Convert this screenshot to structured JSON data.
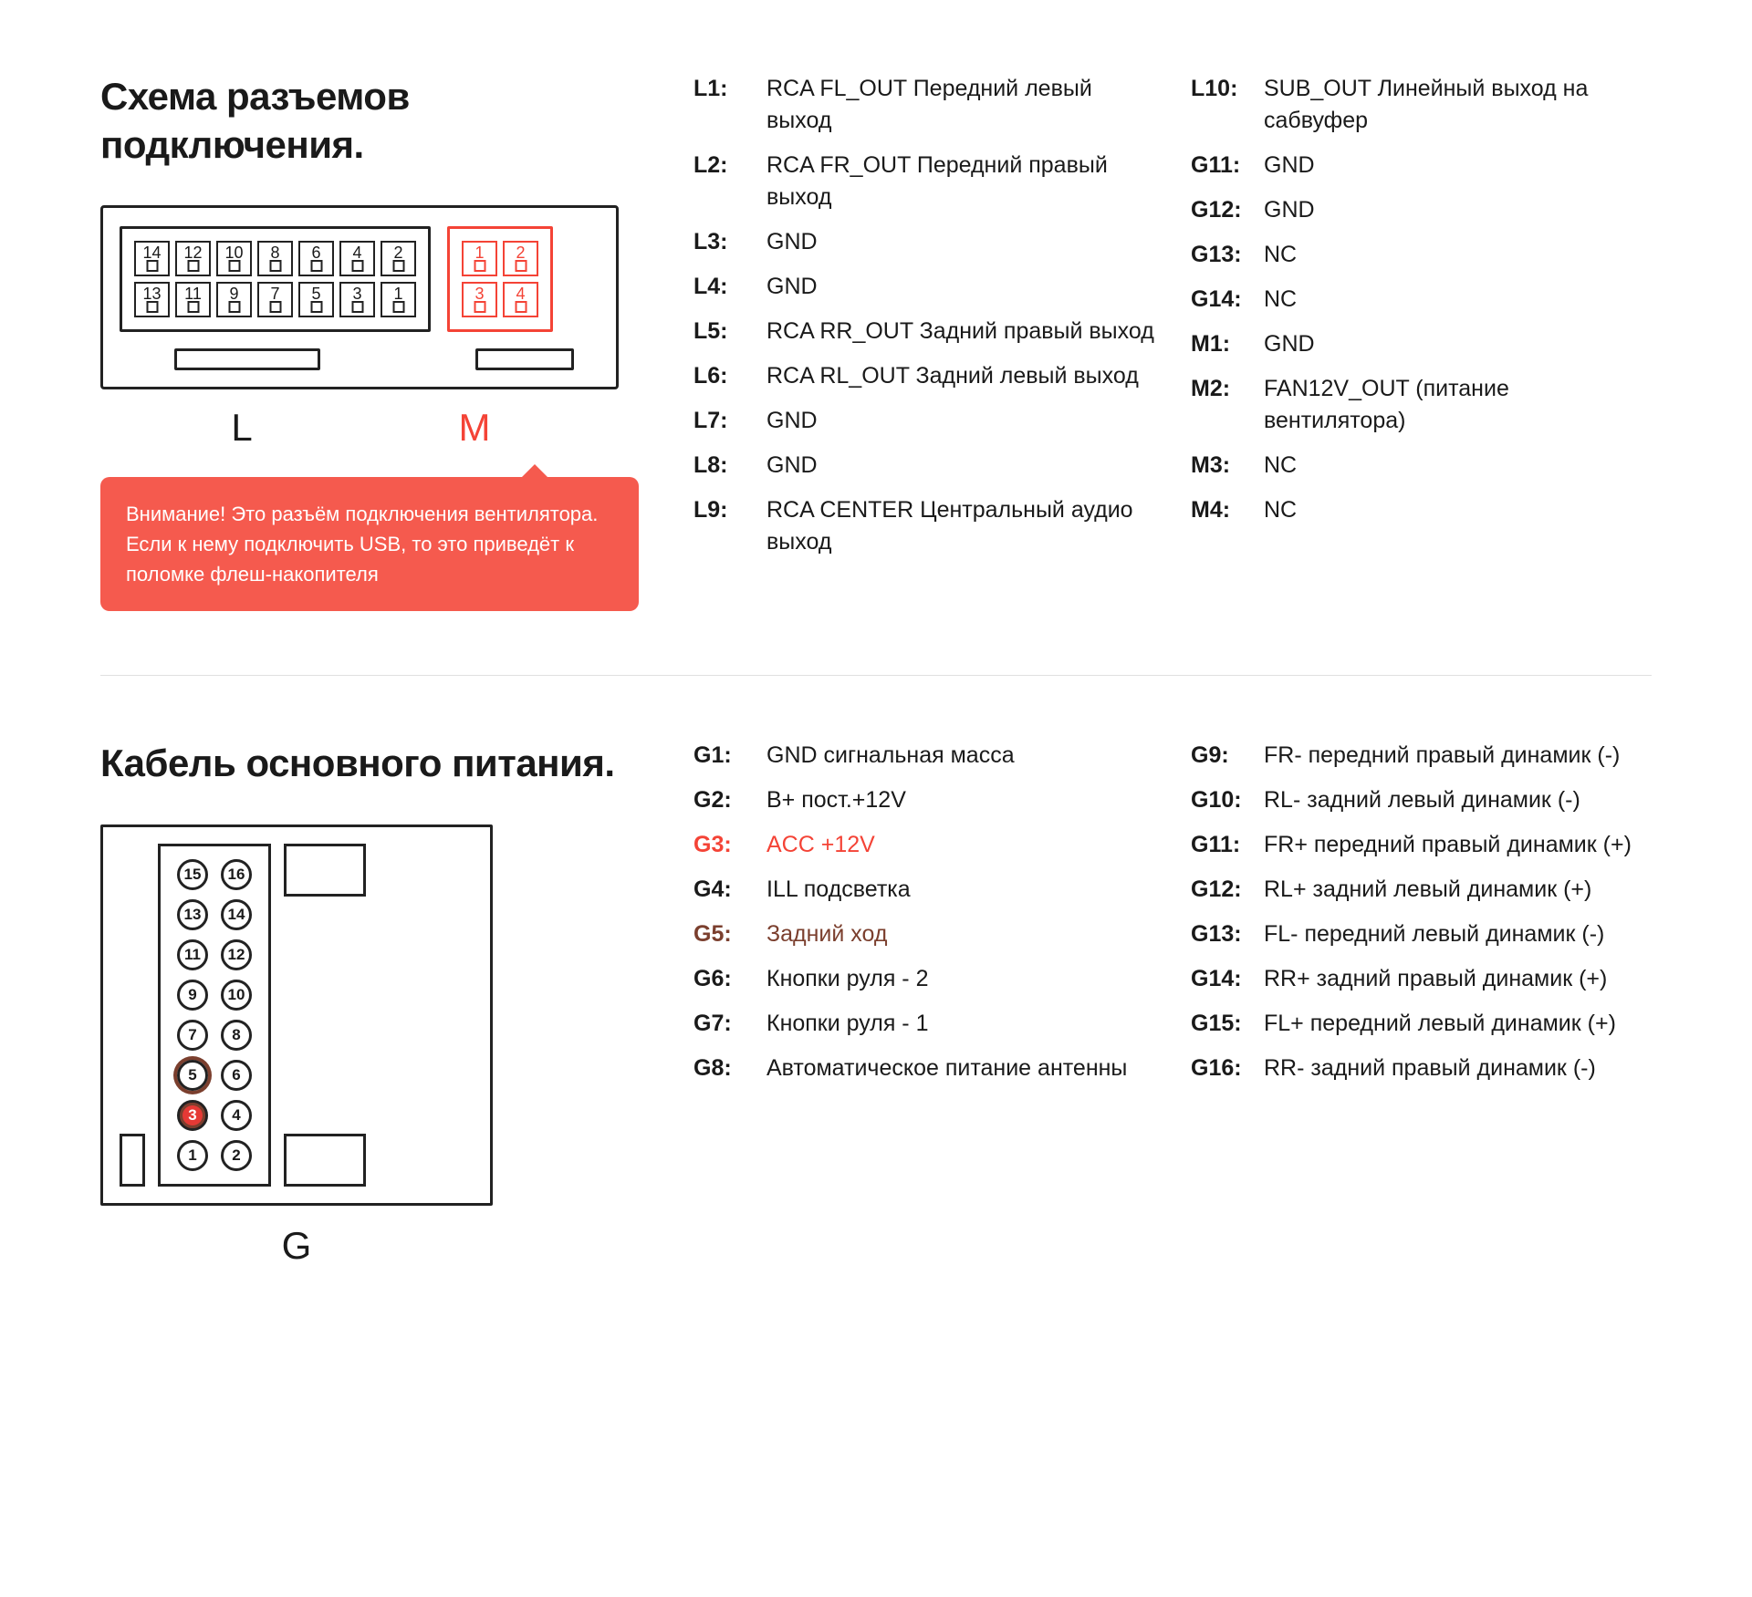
{
  "section1": {
    "title": "Схема разъемов подключения.",
    "connector_labels": {
      "L": "L",
      "M": "M"
    },
    "warning": "Внимание! Это разъём подключения вентилятора. Если к нему подключить USB, то это приведёт к поломке флеш-накопителя",
    "diagram": {
      "left_block_rows": [
        [
          "14",
          "12",
          "10",
          "8",
          "6",
          "4",
          "2"
        ],
        [
          "13",
          "11",
          "9",
          "7",
          "5",
          "3",
          "1"
        ]
      ],
      "right_block_rows": [
        [
          "1",
          "2"
        ],
        [
          "3",
          "4"
        ]
      ],
      "left_block_color": "#222222",
      "right_block_color": "#f44336"
    },
    "pins_colA": [
      {
        "k": "L1:",
        "v": "RCA FL_OUT Передний левый выход"
      },
      {
        "k": "L2:",
        "v": "RCA FR_OUT  Передний правый выход"
      },
      {
        "k": "L3:",
        "v": "GND"
      },
      {
        "k": "L4:",
        "v": "GND"
      },
      {
        "k": "L5:",
        "v": "RCA RR_OUT Задний правый выход"
      },
      {
        "k": "L6:",
        "v": "RCA RL_OUT Задний левый выход"
      },
      {
        "k": "L7:",
        "v": "GND"
      },
      {
        "k": "L8:",
        "v": "GND"
      },
      {
        "k": "L9:",
        "v": "RCA CENTER Центральный аудио выход"
      }
    ],
    "pins_colB": [
      {
        "k": "L10:",
        "v": "SUB_OUT Линейный выход на сабвуфер"
      },
      {
        "k": "G11:",
        "v": "GND"
      },
      {
        "k": "G12:",
        "v": "GND"
      },
      {
        "k": "G13:",
        "v": "NC"
      },
      {
        "k": "G14:",
        "v": "NC"
      },
      {
        "k": "M1:",
        "v": "GND"
      },
      {
        "k": "M2:",
        "v": "FAN12V_OUT (питание вентилятора)"
      },
      {
        "k": "M3:",
        "v": "NC"
      },
      {
        "k": "M4:",
        "v": "NC"
      }
    ]
  },
  "section2": {
    "title": "Кабель основного питания.",
    "connector_label": "G",
    "diagram": {
      "rows": [
        [
          "15",
          "16"
        ],
        [
          "13",
          "14"
        ],
        [
          "11",
          "12"
        ],
        [
          "9",
          "10"
        ],
        [
          "7",
          "8"
        ],
        [
          "5",
          "6"
        ],
        [
          "3",
          "4"
        ],
        [
          "1",
          "2"
        ]
      ],
      "highlight_red_pin": "3",
      "highlight_brown_ring_pin": "5",
      "pin_color_default": "#222222",
      "pin_fill_red": "#e53935",
      "ring_brown": "#7b3f2e"
    },
    "pins_colA": [
      {
        "k": "G1:",
        "v": "GND сигнальная масса"
      },
      {
        "k": "G2:",
        "v": "B+ пост.+12V"
      },
      {
        "k": "G3:",
        "v": "ACC +12V",
        "hl": "red"
      },
      {
        "k": "G4:",
        "v": "ILL подсветка"
      },
      {
        "k": "G5:",
        "v": "Задний ход",
        "hl": "brown"
      },
      {
        "k": "G6:",
        "v": "Кнопки руля - 2"
      },
      {
        "k": "G7:",
        "v": "Кнопки руля - 1"
      },
      {
        "k": "G8:",
        "v": "Автоматическое питание антенны"
      }
    ],
    "pins_colB": [
      {
        "k": "G9:",
        "v": "FR- передний правый динамик (-)"
      },
      {
        "k": "G10:",
        "v": "RL- задний левый динамик (-)"
      },
      {
        "k": "G11:",
        "v": "FR+ передний правый динамик (+)"
      },
      {
        "k": "G12:",
        "v": "RL+ задний левый динамик (+)"
      },
      {
        "k": "G13:",
        "v": "FL- передний левый динамик (-)"
      },
      {
        "k": "G14:",
        "v": "RR+ задний правый динамик (+)"
      },
      {
        "k": "G15:",
        "v": "FL+ передний левый динамик (+)"
      },
      {
        "k": "G16:",
        "v": "RR- задний правый динамик (-)"
      }
    ]
  },
  "colors": {
    "text": "#1a1a1a",
    "red": "#f44336",
    "warning_bg": "#f55a4e",
    "brown": "#7b3f2e",
    "divider": "#e0e0e0",
    "background": "#ffffff"
  }
}
